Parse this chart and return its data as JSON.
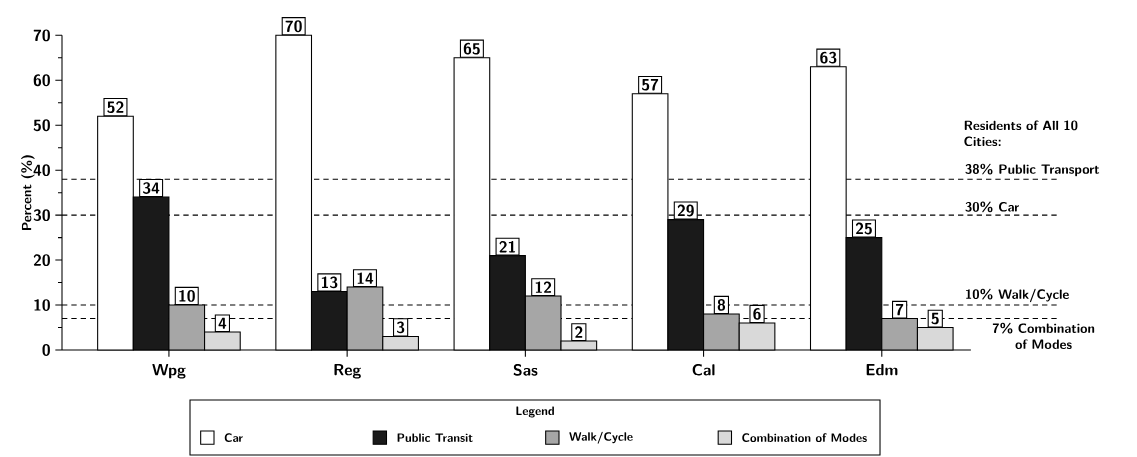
{
  "chart_data": {
    "type": "bar",
    "ylabel": "Percent (%)",
    "legend_title": "Legend",
    "categories": [
      "Wpg",
      "Reg",
      "Sas",
      "Cal",
      "Edm"
    ],
    "series": [
      {
        "name": "Car",
        "color": "#ffffff",
        "values": [
          52,
          70,
          65,
          57,
          63
        ]
      },
      {
        "name": "Public Transit",
        "color": "#1a1a1a",
        "values": [
          34,
          13,
          21,
          29,
          25
        ]
      },
      {
        "name": "Walk/Cycle",
        "color": "#a6a6a6",
        "values": [
          10,
          14,
          12,
          8,
          7
        ]
      },
      {
        "name": "Combination of Modes",
        "color": "#d9d9d9",
        "values": [
          4,
          3,
          2,
          6,
          5
        ]
      }
    ],
    "ylim": [
      0,
      70
    ],
    "yticks": [
      0,
      10,
      20,
      30,
      40,
      50,
      60,
      70
    ],
    "data_labels": true,
    "grid": false,
    "legend": "bottom",
    "annotations": [
      "Residents of All 10 Cities:"
    ],
    "ref_lines": [
      {
        "axis": "y",
        "value": 38,
        "label": "38%  Public Transport",
        "line_style": "dashed"
      },
      {
        "axis": "y",
        "value": 30,
        "label": "30%  Car",
        "line_style": "dashed"
      },
      {
        "axis": "y",
        "value": 10,
        "label": "10% Walk/Cycle",
        "line_style": "dashed"
      },
      {
        "axis": "y",
        "value": 7,
        "label": "7% Combination of Modes",
        "line_style": "dashed"
      }
    ]
  }
}
